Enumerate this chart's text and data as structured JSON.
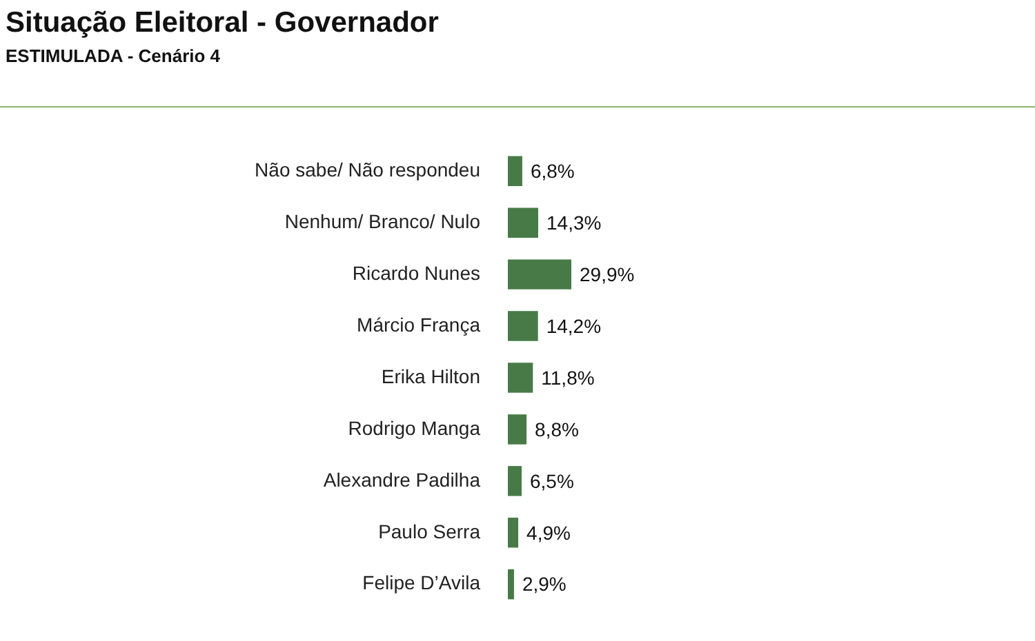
{
  "chart_data": {
    "type": "bar",
    "orientation": "horizontal",
    "title": "Situação Eleitoral - Governador",
    "subtitle": "ESTIMULADA - Cenário 4",
    "categories": [
      "Não sabe/ Não respondeu",
      "Nenhum/ Branco/ Nulo",
      "Ricardo Nunes",
      "Márcio França",
      "Erika Hilton",
      "Rodrigo Manga",
      "Alexandre Padilha",
      "Paulo Serra",
      "Felipe D’Avila"
    ],
    "values": [
      6.8,
      14.3,
      29.9,
      14.2,
      11.8,
      8.8,
      6.5,
      4.9,
      2.9
    ],
    "value_labels": [
      "6,8%",
      "14,3%",
      "29,9%",
      "14,2%",
      "11,8%",
      "8,8%",
      "6,5%",
      "4,9%",
      "2,9%"
    ],
    "color": "#477a47"
  }
}
